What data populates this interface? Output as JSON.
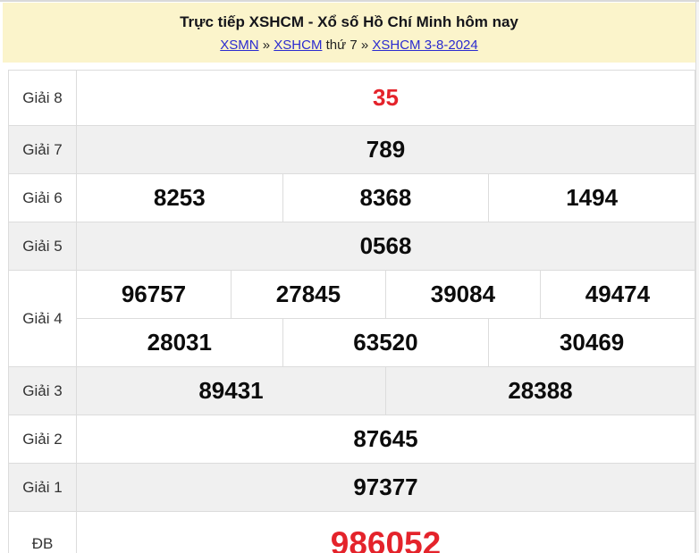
{
  "header": {
    "title": "Trực tiếp XSHCM - Xổ số Hồ Chí Minh hôm nay",
    "breadcrumb": {
      "link_xsmn": "XSMN",
      "sep1": "»",
      "link_xshcm": "XSHCM",
      "plain_text": "thứ 7",
      "sep2": "»",
      "link_date": "XSHCM 3-8-2024"
    }
  },
  "results_table": {
    "rows": [
      {
        "label": "Giải 8",
        "highlight": true,
        "large": false,
        "numbers": [
          [
            "35"
          ]
        ]
      },
      {
        "label": "Giải 7",
        "highlight": false,
        "large": false,
        "numbers": [
          [
            "789"
          ]
        ]
      },
      {
        "label": "Giải 6",
        "highlight": false,
        "large": false,
        "numbers": [
          [
            "8253",
            "8368",
            "1494"
          ]
        ]
      },
      {
        "label": "Giải 5",
        "highlight": false,
        "large": false,
        "numbers": [
          [
            "0568"
          ]
        ]
      },
      {
        "label": "Giải 4",
        "highlight": false,
        "large": false,
        "numbers": [
          [
            "96757",
            "27845",
            "39084",
            "49474"
          ],
          [
            "28031",
            "63520",
            "30469"
          ]
        ]
      },
      {
        "label": "Giải 3",
        "highlight": false,
        "large": false,
        "numbers": [
          [
            "89431",
            "28388"
          ]
        ]
      },
      {
        "label": "Giải 2",
        "highlight": false,
        "large": false,
        "numbers": [
          [
            "87645"
          ]
        ]
      },
      {
        "label": "Giải 1",
        "highlight": false,
        "large": false,
        "numbers": [
          [
            "97377"
          ]
        ]
      },
      {
        "label": "ĐB",
        "highlight": true,
        "large": true,
        "numbers": [
          [
            "986052"
          ]
        ]
      }
    ]
  },
  "colors": {
    "header_background": "#fbf4cb",
    "link_blue": "#2b2bd0",
    "accent_red": "#e4232b",
    "row_shaded": "#f0f0f0",
    "border": "#dcdcdc",
    "number_black": "#0c0c0c"
  }
}
